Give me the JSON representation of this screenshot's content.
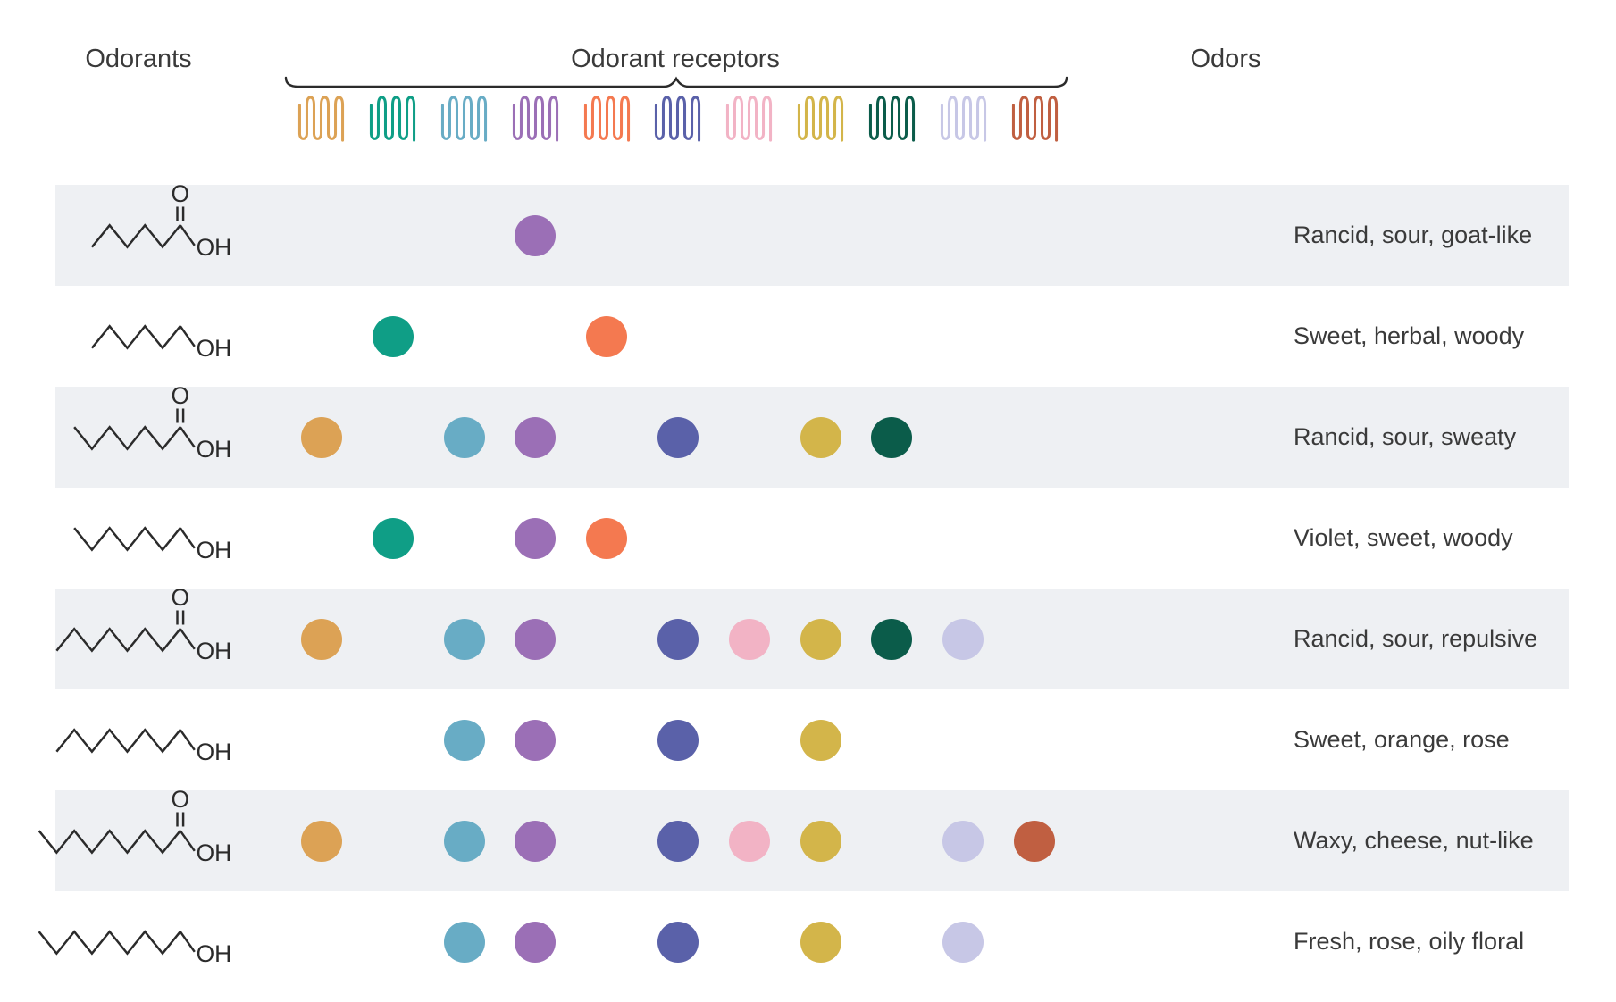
{
  "figure": {
    "odorants_header": "Odorants",
    "receptors_header": "Odorant receptors",
    "odors_header": "Odors"
  },
  "colors": {
    "row_shade": "#eef0f3",
    "structure_stroke": "#2b2b2b",
    "text": "#3a3a3a",
    "brace": "#2b2b2b"
  },
  "molecule_labels": {
    "carbonyl_oxygen": "O",
    "hydroxyl": "OH"
  },
  "receptors": [
    {
      "id": 1,
      "color": "#dca255"
    },
    {
      "id": 2,
      "color": "#0f9e86"
    },
    {
      "id": 3,
      "color": "#68acc5"
    },
    {
      "id": 4,
      "color": "#9b6fb6"
    },
    {
      "id": 5,
      "color": "#f47950"
    },
    {
      "id": 6,
      "color": "#5a61a9"
    },
    {
      "id": 7,
      "color": "#f2b3c5"
    },
    {
      "id": 8,
      "color": "#d3b54a"
    },
    {
      "id": 9,
      "color": "#0b5c4a"
    },
    {
      "id": 10,
      "color": "#c7c7e6"
    },
    {
      "id": 11,
      "color": "#c05f41"
    }
  ],
  "rows": [
    {
      "shaded": true,
      "molecule": {
        "type": "carboxylic-acid",
        "carbons": 6
      },
      "active_receptors": [
        4
      ],
      "odor": "Rancid, sour, goat-like"
    },
    {
      "shaded": false,
      "molecule": {
        "type": "alcohol",
        "carbons": 6
      },
      "active_receptors": [
        2,
        5
      ],
      "odor": "Sweet, herbal, woody"
    },
    {
      "shaded": true,
      "molecule": {
        "type": "carboxylic-acid",
        "carbons": 7
      },
      "active_receptors": [
        1,
        3,
        4,
        6,
        8,
        9
      ],
      "odor": "Rancid, sour, sweaty"
    },
    {
      "shaded": false,
      "molecule": {
        "type": "alcohol",
        "carbons": 7
      },
      "active_receptors": [
        2,
        4,
        5
      ],
      "odor": "Violet, sweet, woody"
    },
    {
      "shaded": true,
      "molecule": {
        "type": "carboxylic-acid",
        "carbons": 8
      },
      "active_receptors": [
        1,
        3,
        4,
        6,
        7,
        8,
        9,
        10
      ],
      "odor": "Rancid, sour, repulsive"
    },
    {
      "shaded": false,
      "molecule": {
        "type": "alcohol",
        "carbons": 8
      },
      "active_receptors": [
        3,
        4,
        6,
        8
      ],
      "odor": "Sweet, orange, rose"
    },
    {
      "shaded": true,
      "molecule": {
        "type": "carboxylic-acid",
        "carbons": 9
      },
      "active_receptors": [
        1,
        3,
        4,
        6,
        7,
        8,
        10,
        11
      ],
      "odor": "Waxy, cheese, nut-like"
    },
    {
      "shaded": false,
      "molecule": {
        "type": "alcohol",
        "carbons": 9
      },
      "active_receptors": [
        3,
        4,
        6,
        8,
        10
      ],
      "odor": "Fresh, rose, oily floral"
    }
  ]
}
